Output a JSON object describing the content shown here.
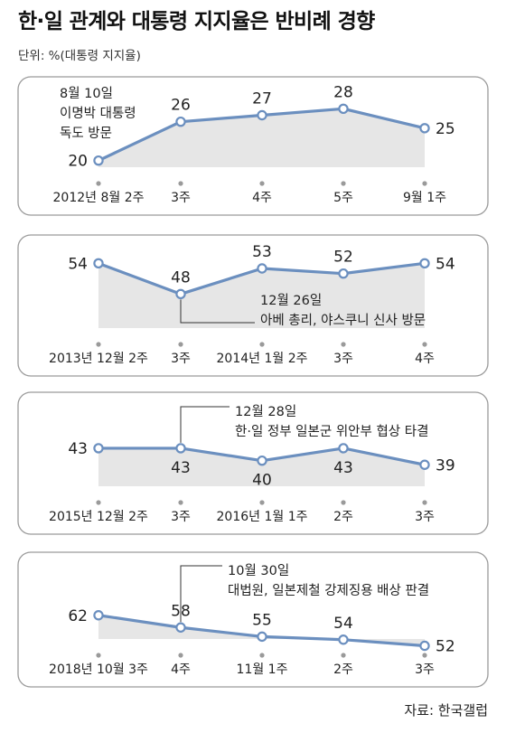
{
  "title": "한·일 관계와 대통령 지지율은 반비례 경향",
  "unit_label": "단위: %(대통령 지지율)",
  "source": "자료: 한국갤럽",
  "colors": {
    "line": "#6b8fbf",
    "plot_bg": "#e6e6e6",
    "panel_border": "#9a9a9a",
    "dot": "#9a9a9a"
  },
  "chart_data": [
    {
      "type": "line",
      "categories": [
        "2012년 8월 2주",
        "3주",
        "4주",
        "5주",
        "9월 1주"
      ],
      "values": [
        20,
        26,
        27,
        28,
        25
      ],
      "ylim": [
        18,
        30
      ],
      "annotation": {
        "lines": [
          "8월 10일",
          "이명박 대통령",
          "독도 방문"
        ],
        "at_index": 0
      }
    },
    {
      "type": "line",
      "categories": [
        "2013년 12월 2주",
        "3주",
        "2014년 1월 2주",
        "3주",
        "4주"
      ],
      "values": [
        54,
        48,
        53,
        52,
        54
      ],
      "ylim": [
        44,
        56
      ],
      "annotation": {
        "lines": [
          "12월 26일",
          "아베 총리, 야스쿠니 신사 방문"
        ],
        "at_index": 1
      }
    },
    {
      "type": "line",
      "categories": [
        "2015년 12월 2주",
        "3주",
        "2016년 1월 1주",
        "2주",
        "3주"
      ],
      "values": [
        43,
        43,
        40,
        43,
        39
      ],
      "ylim": [
        36,
        48
      ],
      "annotation": {
        "lines": [
          "12월 28일",
          "한·일 정부 일본군 위안부 협상 타결"
        ],
        "at_index": 1
      }
    },
    {
      "type": "line",
      "categories": [
        "2018년 10월 3주",
        "4주",
        "11월 1주",
        "2주",
        "3주"
      ],
      "values": [
        62,
        58,
        55,
        54,
        52
      ],
      "ylim": [
        48,
        72
      ],
      "annotation": {
        "lines": [
          "10월 30일",
          "대법원, 일본제철 강제징용 배상 판결"
        ],
        "at_index": 1
      }
    }
  ]
}
